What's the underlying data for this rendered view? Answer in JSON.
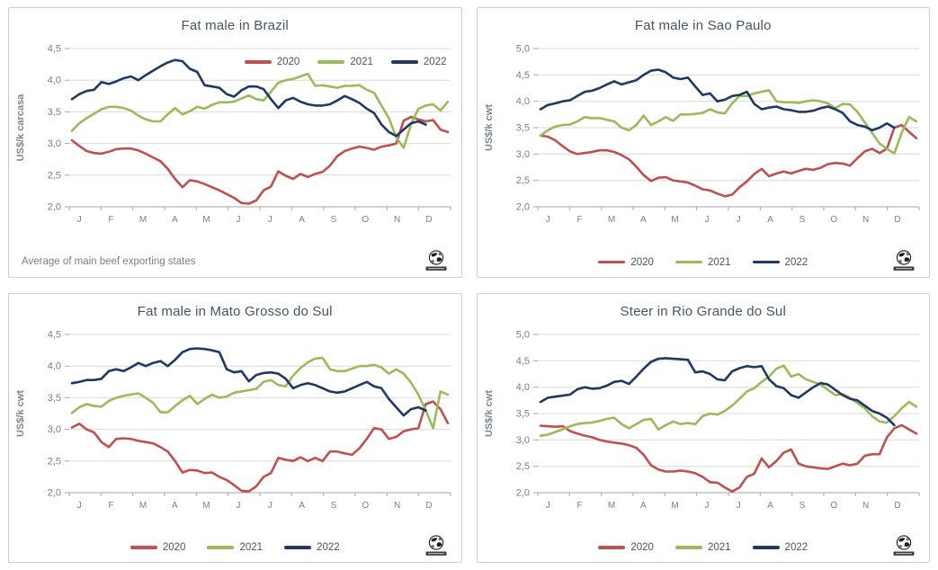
{
  "page": {
    "background": "#FFFFFF"
  },
  "palette": {
    "series_2020": "#C0504D",
    "series_2021": "#9BBB59",
    "series_2022": "#1F3864",
    "gridline": "#D9D9D9",
    "axis_line": "#A6A6A6",
    "tick_label": "#7F7F7F",
    "title_color": "#44546A",
    "legend_text": "#44546A"
  },
  "icons": {
    "logo": "globe-logo"
  },
  "chart_data": [
    {
      "type": "line",
      "title": "Fat male in Brazil",
      "ylabel": "US$/k carcasa",
      "xlabel": "",
      "ylim": [
        2.0,
        4.5
      ],
      "y_tick_labels": [
        "4,5",
        "4,0",
        "3,5",
        "3,0",
        "2,5",
        "2,0"
      ],
      "x_tick_labels": [
        "J",
        "F",
        "M",
        "A",
        "M",
        "J",
        "J",
        "A",
        "S",
        "O",
        "N",
        "D"
      ],
      "grid": true,
      "legend_position": "inside-top-right",
      "footnote": "Average  of main beef exporting states",
      "series": [
        {
          "name": "2020",
          "color": "#C0504D",
          "values": [
            3.05,
            2.96,
            2.88,
            2.85,
            2.84,
            2.87,
            2.91,
            2.92,
            2.92,
            2.89,
            2.84,
            2.78,
            2.72,
            2.6,
            2.44,
            2.31,
            2.42,
            2.4,
            2.36,
            2.31,
            2.26,
            2.2,
            2.14,
            2.06,
            2.05,
            2.1,
            2.26,
            2.32,
            2.56,
            2.49,
            2.44,
            2.52,
            2.47,
            2.52,
            2.55,
            2.65,
            2.8,
            2.88,
            2.92,
            2.95,
            2.93,
            2.9,
            2.95,
            2.97,
            3.0,
            3.36,
            3.42,
            3.38,
            3.35,
            3.37,
            3.22,
            3.18
          ]
        },
        {
          "name": "2021",
          "color": "#9BBB59",
          "values": [
            3.2,
            3.32,
            3.4,
            3.47,
            3.54,
            3.58,
            3.58,
            3.56,
            3.52,
            3.44,
            3.38,
            3.35,
            3.35,
            3.46,
            3.56,
            3.46,
            3.51,
            3.58,
            3.55,
            3.61,
            3.65,
            3.65,
            3.66,
            3.71,
            3.76,
            3.7,
            3.68,
            3.82,
            3.96,
            4.0,
            4.02,
            4.06,
            4.1,
            3.91,
            3.92,
            3.9,
            3.88,
            3.91,
            3.91,
            3.92,
            3.85,
            3.8,
            3.6,
            3.4,
            3.1,
            2.93,
            3.3,
            3.55,
            3.6,
            3.62,
            3.52,
            3.66
          ]
        },
        {
          "name": "2022",
          "color": "#1F3864",
          "values": [
            3.7,
            3.78,
            3.83,
            3.85,
            3.97,
            3.94,
            3.98,
            4.03,
            4.06,
            4.0,
            4.08,
            4.15,
            4.22,
            4.28,
            4.32,
            4.3,
            4.18,
            4.13,
            3.92,
            3.9,
            3.88,
            3.78,
            3.74,
            3.84,
            3.9,
            3.9,
            3.86,
            3.7,
            3.56,
            3.68,
            3.72,
            3.66,
            3.62,
            3.6,
            3.6,
            3.62,
            3.68,
            3.75,
            3.7,
            3.64,
            3.55,
            3.48,
            3.3,
            3.18,
            3.12,
            3.22,
            3.32,
            3.35,
            3.3
          ]
        }
      ]
    },
    {
      "type": "line",
      "title": "Fat male in Sao Paulo",
      "ylabel": "US$/k cwt",
      "xlabel": "",
      "ylim": [
        2.0,
        5.0
      ],
      "y_tick_labels": [
        "5,0",
        "4,5",
        "4,0",
        "3,5",
        "3,0",
        "2,5",
        "2,0"
      ],
      "x_tick_labels": [
        "J",
        "F",
        "M",
        "A",
        "M",
        "J",
        "J",
        "A",
        "S",
        "O",
        "N",
        "D"
      ],
      "grid": true,
      "legend_position": "bottom",
      "footnote": null,
      "series": [
        {
          "name": "2020",
          "color": "#C0504D",
          "values": [
            3.35,
            3.33,
            3.26,
            3.15,
            3.05,
            3.0,
            3.02,
            3.04,
            3.07,
            3.07,
            3.04,
            2.98,
            2.9,
            2.76,
            2.6,
            2.49,
            2.55,
            2.56,
            2.5,
            2.48,
            2.46,
            2.4,
            2.33,
            2.31,
            2.25,
            2.2,
            2.23,
            2.37,
            2.48,
            2.62,
            2.72,
            2.58,
            2.63,
            2.67,
            2.63,
            2.68,
            2.72,
            2.7,
            2.74,
            2.81,
            2.83,
            2.82,
            2.78,
            2.92,
            3.05,
            3.1,
            3.02,
            3.1,
            3.5,
            3.55,
            3.42,
            3.3
          ]
        },
        {
          "name": "2021",
          "color": "#9BBB59",
          "values": [
            3.35,
            3.45,
            3.52,
            3.55,
            3.56,
            3.62,
            3.7,
            3.68,
            3.68,
            3.65,
            3.62,
            3.5,
            3.45,
            3.55,
            3.73,
            3.55,
            3.62,
            3.7,
            3.63,
            3.75,
            3.75,
            3.76,
            3.78,
            3.85,
            3.79,
            3.77,
            3.96,
            4.1,
            4.1,
            4.15,
            4.18,
            4.21,
            4.0,
            3.98,
            3.98,
            3.97,
            4.0,
            4.02,
            4.0,
            3.96,
            3.87,
            3.95,
            3.94,
            3.8,
            3.6,
            3.4,
            3.2,
            3.1,
            3.01,
            3.4,
            3.7,
            3.62
          ]
        },
        {
          "name": "2022",
          "color": "#1F3864",
          "values": [
            3.85,
            3.93,
            3.96,
            4.0,
            4.02,
            4.1,
            4.18,
            4.2,
            4.25,
            4.32,
            4.38,
            4.32,
            4.36,
            4.4,
            4.5,
            4.58,
            4.6,
            4.55,
            4.45,
            4.42,
            4.45,
            4.28,
            4.12,
            4.15,
            4.0,
            4.03,
            4.1,
            4.12,
            4.18,
            3.95,
            3.85,
            3.88,
            3.9,
            3.85,
            3.83,
            3.8,
            3.8,
            3.82,
            3.87,
            3.9,
            3.85,
            3.78,
            3.62,
            3.55,
            3.52,
            3.45,
            3.5,
            3.58,
            3.5
          ]
        }
      ]
    },
    {
      "type": "line",
      "title": "Fat male in Mato Grosso do Sul",
      "ylabel": "US$/k cwt",
      "xlabel": "",
      "ylim": [
        2.0,
        4.5
      ],
      "y_tick_labels": [
        "4,5",
        "4,0",
        "3,5",
        "3,0",
        "2,5",
        "2,0"
      ],
      "x_tick_labels": [
        "J",
        "F",
        "M",
        "A",
        "M",
        "J",
        "J",
        "A",
        "S",
        "O",
        "N",
        "D"
      ],
      "grid": true,
      "legend_position": "bottom",
      "footnote": null,
      "series": [
        {
          "name": "2020",
          "color": "#C0504D",
          "values": [
            3.03,
            3.09,
            3.0,
            2.95,
            2.8,
            2.72,
            2.85,
            2.86,
            2.85,
            2.82,
            2.8,
            2.78,
            2.72,
            2.65,
            2.5,
            2.32,
            2.36,
            2.35,
            2.31,
            2.32,
            2.25,
            2.2,
            2.12,
            2.03,
            2.02,
            2.1,
            2.25,
            2.31,
            2.55,
            2.52,
            2.5,
            2.56,
            2.5,
            2.55,
            2.5,
            2.65,
            2.65,
            2.62,
            2.6,
            2.7,
            2.85,
            3.02,
            3.0,
            2.85,
            2.88,
            2.97,
            3.0,
            3.02,
            3.4,
            3.44,
            3.32,
            3.1
          ]
        },
        {
          "name": "2021",
          "color": "#9BBB59",
          "values": [
            3.26,
            3.35,
            3.4,
            3.37,
            3.36,
            3.45,
            3.5,
            3.53,
            3.55,
            3.57,
            3.5,
            3.42,
            3.27,
            3.27,
            3.37,
            3.46,
            3.53,
            3.4,
            3.48,
            3.55,
            3.5,
            3.52,
            3.58,
            3.6,
            3.62,
            3.64,
            3.75,
            3.78,
            3.7,
            3.68,
            3.85,
            3.97,
            4.06,
            4.12,
            4.13,
            3.95,
            3.92,
            3.92,
            3.96,
            4.0,
            4.0,
            4.02,
            3.98,
            3.88,
            3.95,
            3.88,
            3.74,
            3.55,
            3.3,
            3.02,
            3.6,
            3.55
          ]
        },
        {
          "name": "2022",
          "color": "#1F3864",
          "values": [
            3.73,
            3.75,
            3.78,
            3.78,
            3.8,
            3.92,
            3.95,
            3.92,
            3.98,
            4.05,
            4.0,
            4.05,
            4.08,
            4.0,
            4.1,
            4.22,
            4.27,
            4.28,
            4.27,
            4.25,
            4.22,
            3.95,
            3.9,
            3.92,
            3.76,
            3.86,
            3.89,
            3.9,
            3.88,
            3.8,
            3.65,
            3.7,
            3.73,
            3.7,
            3.65,
            3.6,
            3.58,
            3.6,
            3.65,
            3.7,
            3.75,
            3.68,
            3.65,
            3.48,
            3.35,
            3.22,
            3.32,
            3.35,
            3.3
          ]
        }
      ]
    },
    {
      "type": "line",
      "title": "Steer  in Rio Grande do Sul",
      "ylabel": "US$/k cwt",
      "xlabel": "",
      "ylim": [
        2.0,
        5.0
      ],
      "y_tick_labels": [
        "5,0",
        "4,5",
        "4,0",
        "3,5",
        "3,0",
        "2,5",
        "2,0"
      ],
      "x_tick_labels": [
        "J",
        "F",
        "M",
        "A",
        "M",
        "J",
        "J",
        "A",
        "S",
        "O",
        "N",
        "D"
      ],
      "grid": true,
      "legend_position": "bottom",
      "footnote": null,
      "series": [
        {
          "name": "2020",
          "color": "#C0504D",
          "values": [
            3.27,
            3.26,
            3.25,
            3.26,
            3.17,
            3.12,
            3.08,
            3.05,
            3.0,
            2.97,
            2.95,
            2.93,
            2.9,
            2.85,
            2.72,
            2.52,
            2.44,
            2.4,
            2.4,
            2.42,
            2.4,
            2.37,
            2.3,
            2.2,
            2.19,
            2.1,
            2.02,
            2.1,
            2.3,
            2.36,
            2.65,
            2.48,
            2.6,
            2.76,
            2.82,
            2.55,
            2.5,
            2.48,
            2.46,
            2.45,
            2.5,
            2.55,
            2.52,
            2.55,
            2.7,
            2.73,
            2.73,
            3.05,
            3.22,
            3.28,
            3.2,
            3.12
          ]
        },
        {
          "name": "2021",
          "color": "#9BBB59",
          "values": [
            3.08,
            3.1,
            3.15,
            3.2,
            3.26,
            3.3,
            3.32,
            3.33,
            3.36,
            3.4,
            3.42,
            3.3,
            3.22,
            3.3,
            3.38,
            3.4,
            3.2,
            3.28,
            3.35,
            3.3,
            3.32,
            3.3,
            3.45,
            3.5,
            3.48,
            3.55,
            3.65,
            3.78,
            3.92,
            3.98,
            4.1,
            4.2,
            4.35,
            4.41,
            4.2,
            4.25,
            4.15,
            4.1,
            4.05,
            3.95,
            3.85,
            3.87,
            3.8,
            3.7,
            3.6,
            3.45,
            3.35,
            3.33,
            3.45,
            3.6,
            3.72,
            3.63
          ]
        },
        {
          "name": "2022",
          "color": "#1F3864",
          "values": [
            3.72,
            3.8,
            3.82,
            3.84,
            3.86,
            3.96,
            4.0,
            3.97,
            3.98,
            4.03,
            4.1,
            4.12,
            4.06,
            4.2,
            4.35,
            4.48,
            4.54,
            4.55,
            4.54,
            4.53,
            4.52,
            4.28,
            4.3,
            4.25,
            4.15,
            4.13,
            4.3,
            4.36,
            4.4,
            4.38,
            4.4,
            4.15,
            4.02,
            3.98,
            3.85,
            3.8,
            3.9,
            4.0,
            4.08,
            4.05,
            3.95,
            3.85,
            3.78,
            3.75,
            3.65,
            3.55,
            3.5,
            3.42,
            3.28
          ]
        }
      ]
    }
  ]
}
